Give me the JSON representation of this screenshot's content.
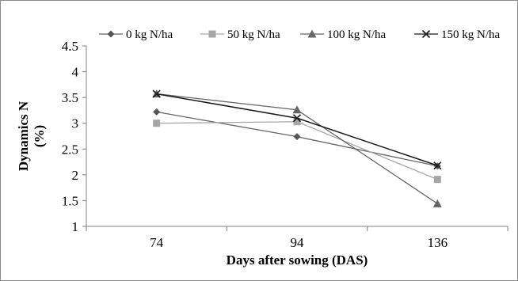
{
  "chart_data": {
    "type": "line",
    "xlabel": "Days after sowing (DAS)",
    "ylabel_lines": [
      "Dynamics N",
      "(%)"
    ],
    "categories": [
      "74",
      "94",
      "136"
    ],
    "ylim": [
      1,
      4.5
    ],
    "yticks": [
      "1",
      "1.5",
      "2",
      "2.5",
      "3",
      "3.5",
      "4",
      "4.5"
    ],
    "grid": false,
    "legend_position": "top",
    "series": [
      {
        "name": "0 kg N/ha",
        "marker": "diamond",
        "color": "#555555",
        "line_color": "#666666",
        "values": [
          3.22,
          2.74,
          2.17
        ]
      },
      {
        "name": "50 kg N/ha",
        "marker": "square",
        "color": "#a6a6a6",
        "line_color": "#a6a6a6",
        "values": [
          3.0,
          3.03,
          1.91
        ]
      },
      {
        "name": "100 kg N/ha",
        "marker": "triangle",
        "color": "#666666",
        "line_color": "#666666",
        "values": [
          3.57,
          3.26,
          1.44
        ]
      },
      {
        "name": "150 kg N/ha",
        "marker": "cross",
        "color": "#1a1a1a",
        "line_color": "#1a1a1a",
        "values": [
          3.57,
          3.1,
          2.18
        ]
      }
    ]
  }
}
